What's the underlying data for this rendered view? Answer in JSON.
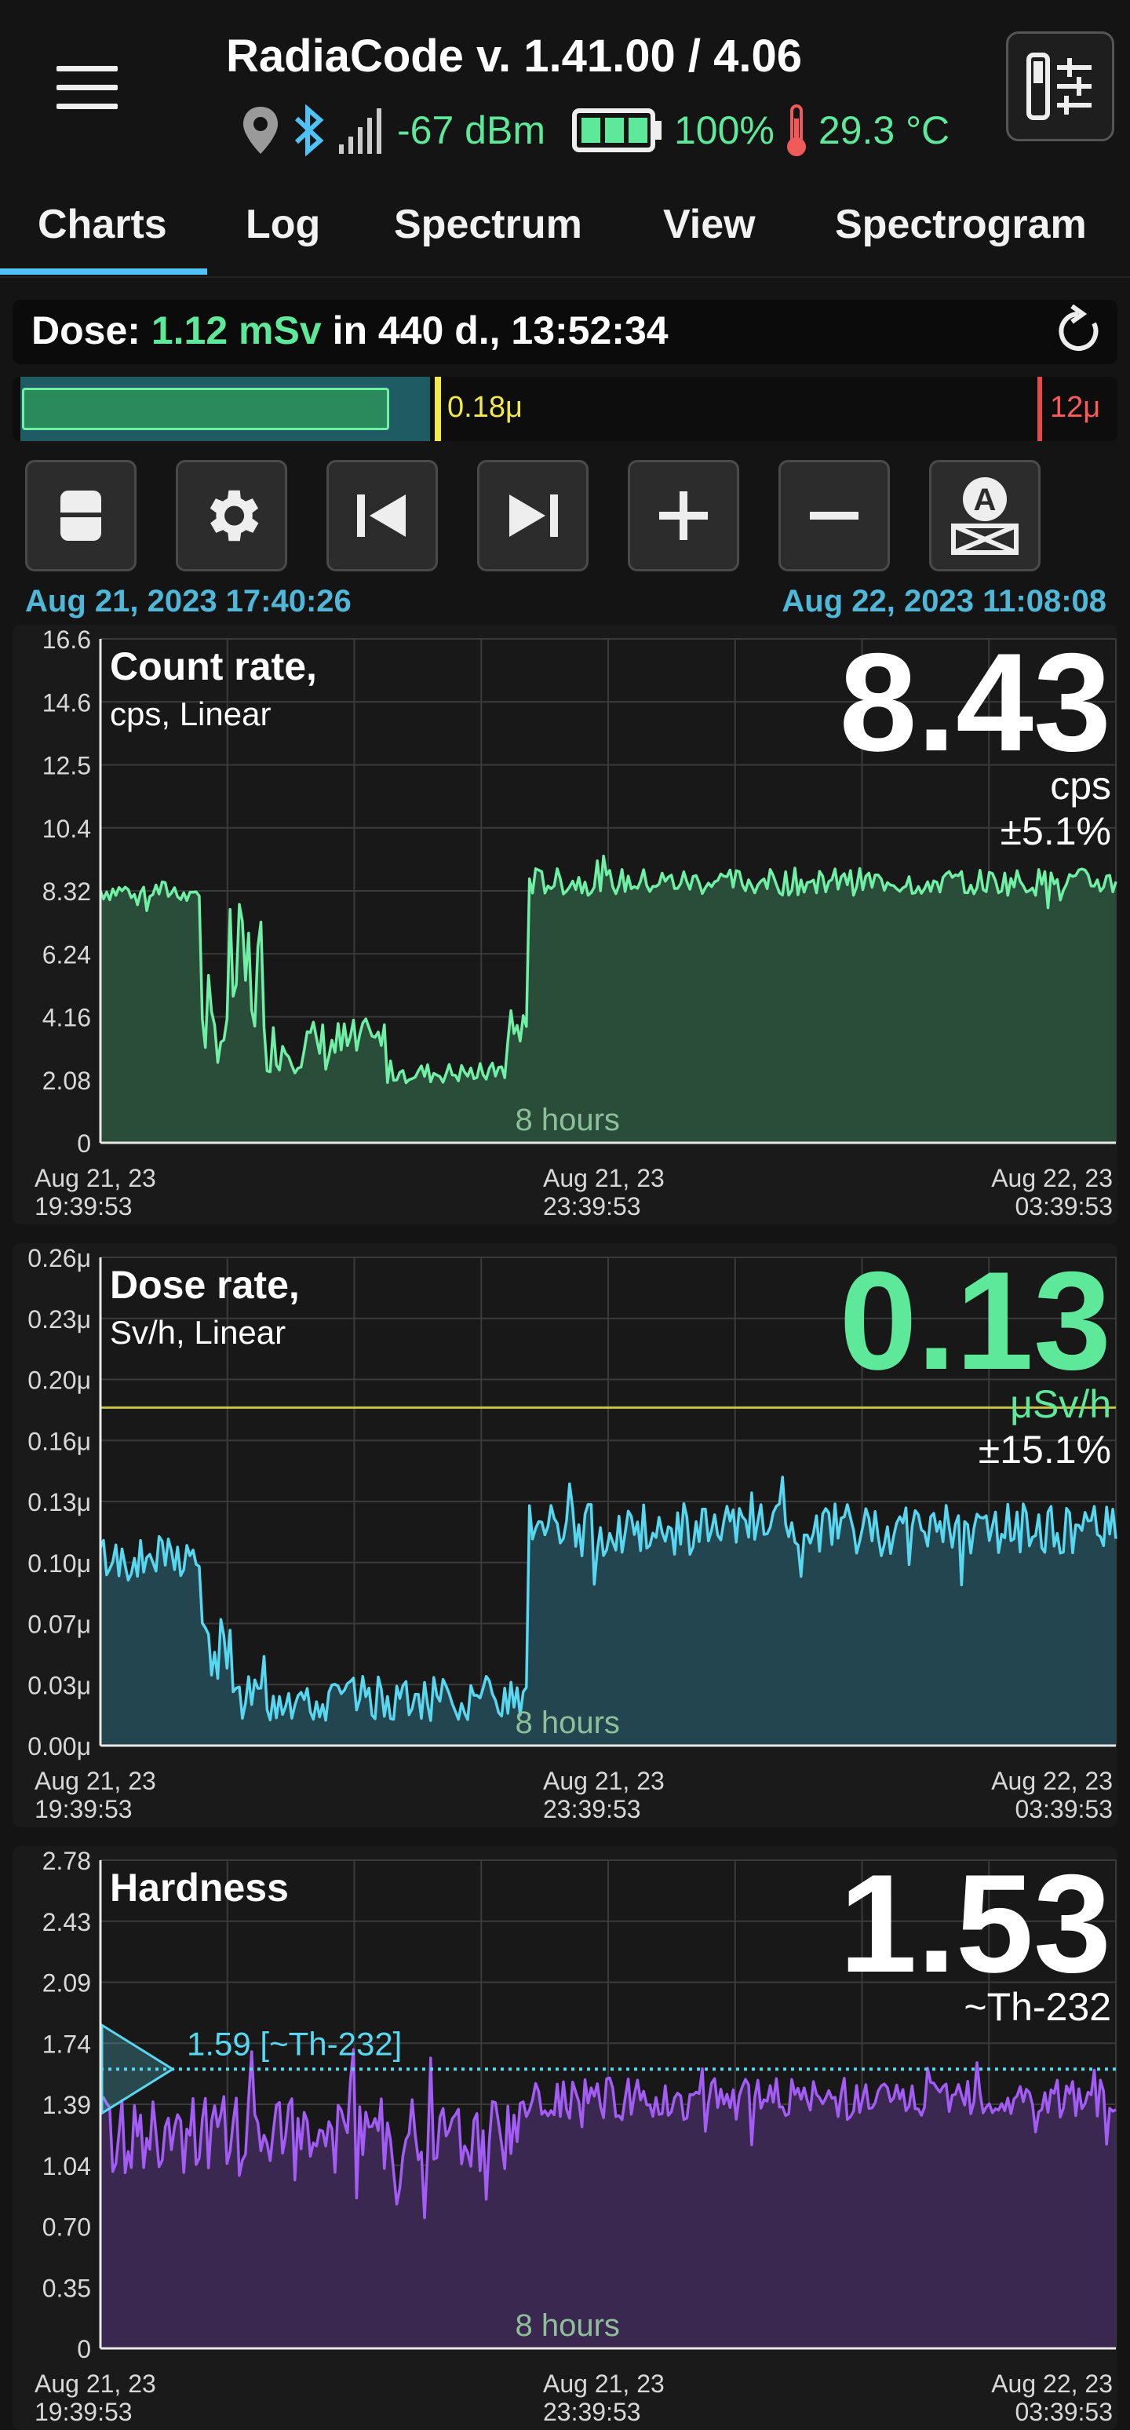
{
  "header": {
    "title": "RadiaCode v. 1.41.00 / 4.06",
    "signal": "-67 dBm",
    "battery": "100%",
    "temperature": "29.3 °C"
  },
  "tabs": [
    {
      "label": "Charts",
      "active": true
    },
    {
      "label": "Log",
      "active": false
    },
    {
      "label": "Spectrum",
      "active": false
    },
    {
      "label": "View",
      "active": false
    },
    {
      "label": "Spectrogram",
      "active": false
    }
  ],
  "dose": {
    "label": "Dose:",
    "value": "1.12 mSv",
    "suffix": "in 440 d., 13:52:34"
  },
  "scale": {
    "marker_low": "0.18μ",
    "marker_high": "12μ"
  },
  "toolbar": {
    "buttons": [
      "layout-toggle",
      "settings",
      "skip-to-start",
      "skip-to-end",
      "zoom-in",
      "zoom-out",
      "auto-scale"
    ]
  },
  "time_range": {
    "start": "Aug 21, 2023 17:40:26",
    "end": "Aug 22, 2023 11:08:08"
  },
  "colors": {
    "count": "#6ff0a5",
    "dose": "#57d8f0",
    "hardness": "#a35cf5",
    "threshold": "#c8c640",
    "accent": "#4fc3f7",
    "value_green": "#5ee89a"
  },
  "chart_data": [
    {
      "type": "area",
      "title": "Count rate,",
      "subtitle": "cps, Linear",
      "current_value": "8.43",
      "unit": "cps",
      "error": "±5.1%",
      "center_label": "8 hours",
      "y_ticks": [
        "16.6",
        "14.6",
        "12.5",
        "10.4",
        "8.32",
        "6.24",
        "4.16",
        "2.08",
        "0"
      ],
      "ylim": [
        0,
        16.6
      ],
      "x_ticks": [
        {
          "date": "Aug 21, 23",
          "time": "19:39:53"
        },
        {
          "date": "Aug 21, 23",
          "time": "23:39:53"
        },
        {
          "date": "Aug 22, 23",
          "time": "03:39:53"
        }
      ],
      "series_profile": [
        {
          "from": 0.0,
          "to": 0.1,
          "level": 8.3,
          "noise": 0.35
        },
        {
          "from": 0.1,
          "to": 0.125,
          "level": 3.6,
          "noise": 1.0
        },
        {
          "from": 0.125,
          "to": 0.16,
          "level": 5.5,
          "noise": 2.4
        },
        {
          "from": 0.16,
          "to": 0.28,
          "level": 3.2,
          "noise": 0.9
        },
        {
          "from": 0.28,
          "to": 0.4,
          "level": 2.3,
          "noise": 0.35
        },
        {
          "from": 0.4,
          "to": 0.42,
          "level": 3.8,
          "noise": 0.6
        },
        {
          "from": 0.42,
          "to": 1.0,
          "level": 8.6,
          "noise": 0.45
        }
      ]
    },
    {
      "type": "area",
      "title": "Dose rate,",
      "subtitle": "Sv/h, Linear",
      "current_value": "0.13",
      "unit": "μSv/h",
      "error": "±15.1%",
      "center_label": "8 hours",
      "threshold": 0.18,
      "y_ticks": [
        "0.26μ",
        "0.23μ",
        "0.20μ",
        "0.16μ",
        "0.13μ",
        "0.10μ",
        "0.07μ",
        "0.03μ",
        "0.00μ"
      ],
      "ylim": [
        0,
        0.26
      ],
      "x_ticks": [
        {
          "date": "Aug 21, 23",
          "time": "19:39:53"
        },
        {
          "date": "Aug 21, 23",
          "time": "23:39:53"
        },
        {
          "date": "Aug 22, 23",
          "time": "03:39:53"
        }
      ],
      "series_profile": [
        {
          "from": 0.0,
          "to": 0.1,
          "level": 0.1,
          "noise": 0.012
        },
        {
          "from": 0.1,
          "to": 0.13,
          "level": 0.05,
          "noise": 0.02
        },
        {
          "from": 0.13,
          "to": 0.42,
          "level": 0.025,
          "noise": 0.012
        },
        {
          "from": 0.42,
          "to": 1.0,
          "level": 0.115,
          "noise": 0.014
        }
      ]
    },
    {
      "type": "area",
      "title": "Hardness",
      "subtitle": "",
      "current_value": "1.53",
      "unit": "~Th-232",
      "error": "",
      "center_label": "8 hours",
      "marker_value": 1.59,
      "marker_label": "1.59 [~Th-232]",
      "y_ticks": [
        "2.78",
        "2.43",
        "2.09",
        "1.74",
        "1.39",
        "1.04",
        "0.70",
        "0.35",
        "0"
      ],
      "ylim": [
        0,
        2.78
      ],
      "x_ticks": [
        {
          "date": "Aug 21, 23",
          "time": "19:39:53"
        },
        {
          "date": "Aug 21, 23",
          "time": "23:39:53"
        },
        {
          "date": "Aug 22, 23",
          "time": "03:39:53"
        }
      ],
      "series_profile": [
        {
          "from": 0.0,
          "to": 0.42,
          "level": 1.22,
          "noise": 0.22
        },
        {
          "from": 0.42,
          "to": 1.0,
          "level": 1.42,
          "noise": 0.12
        }
      ]
    }
  ]
}
